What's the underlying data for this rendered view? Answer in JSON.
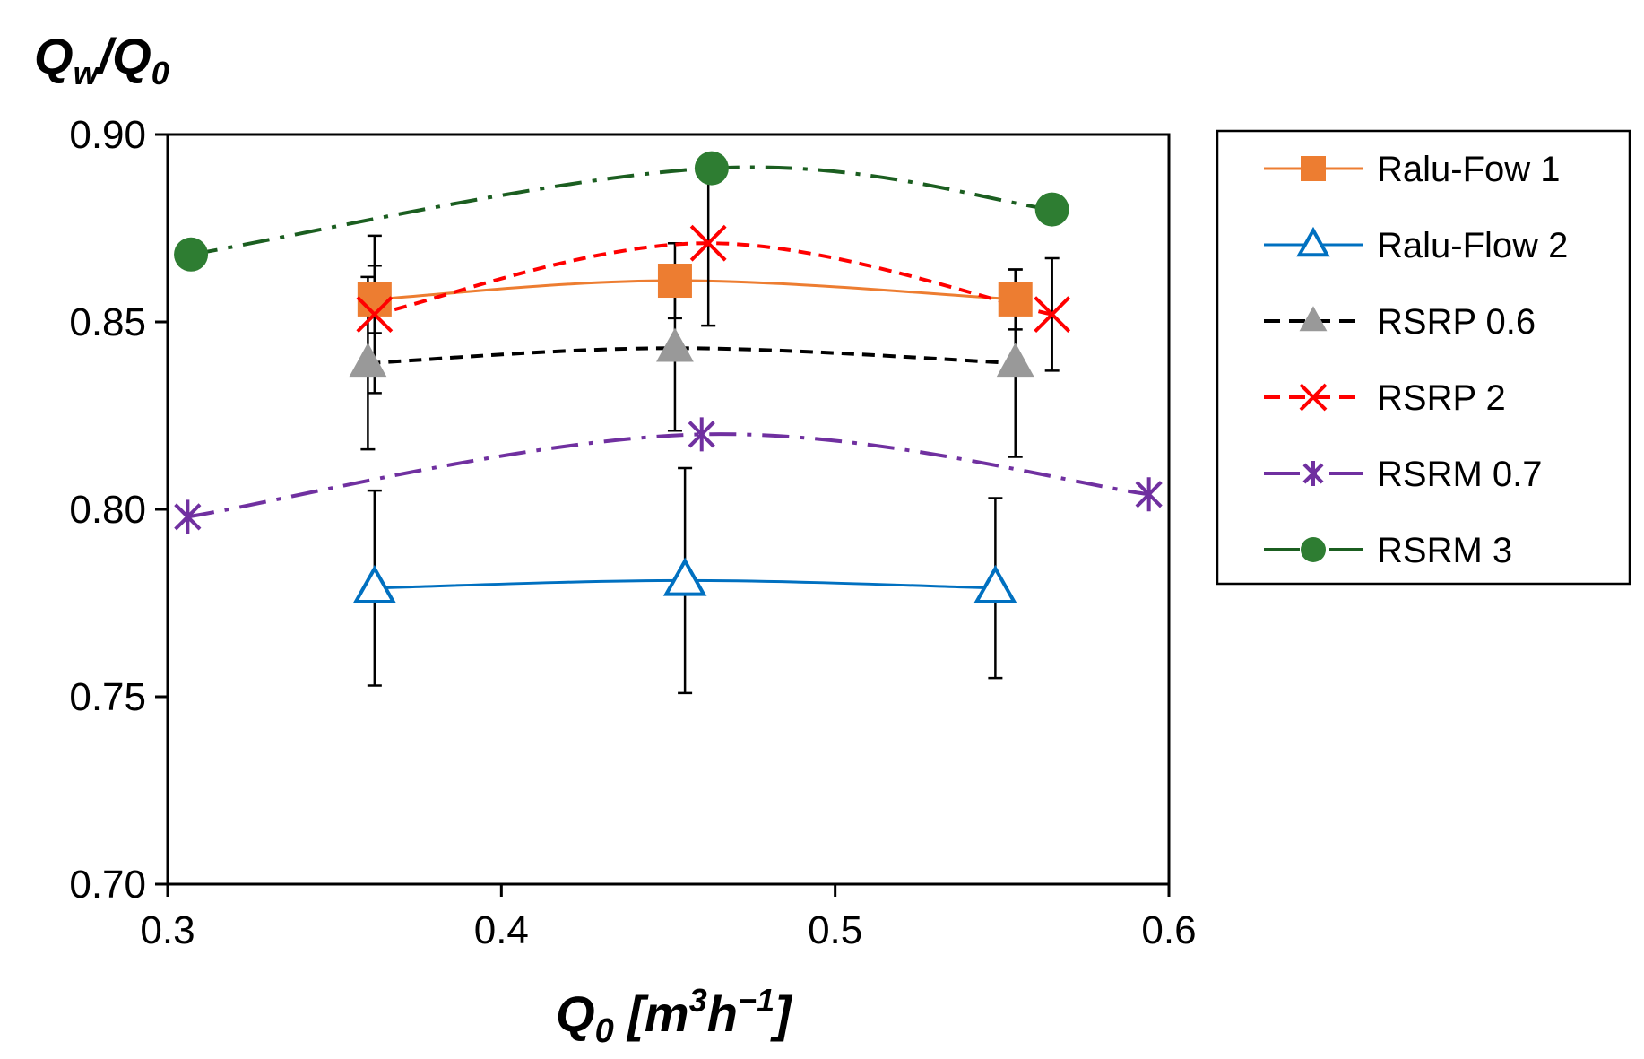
{
  "chart_data": {
    "type": "line",
    "title": "",
    "ylabel": "Q_w/Q_0",
    "ylabel_parts": {
      "q1": "Q",
      "sub1": "w",
      "slash": "/",
      "q2": "Q",
      "sub2": "0"
    },
    "xlabel": "Q_0 [m³h⁻¹]",
    "xlabel_parts": {
      "q": "Q",
      "sub": "0",
      "open": " [m",
      "sup3": "3",
      "mid": "h",
      "supneg": "−1",
      "close": "]"
    },
    "xlim": [
      0.3,
      0.6
    ],
    "ylim": [
      0.7,
      0.9
    ],
    "xticks": [
      0.3,
      0.4,
      0.5,
      0.6
    ],
    "xtick_labels": [
      "0.3",
      "0.4",
      "0.5",
      "0.6"
    ],
    "yticks": [
      0.7,
      0.75,
      0.8,
      0.85,
      0.9
    ],
    "ytick_labels": [
      "0.70",
      "0.75",
      "0.80",
      "0.85",
      "0.90"
    ],
    "grid": false,
    "legend_position": "right",
    "series": [
      {
        "name": "Ralu-Fow 1",
        "color": "#ED7D31",
        "marker": "square",
        "line": "solid",
        "x": [
          0.362,
          0.452,
          0.554
        ],
        "y": [
          0.856,
          0.861,
          0.856
        ],
        "yerr": [
          0.009,
          0.01,
          0.008
        ]
      },
      {
        "name": "Ralu-Flow 2",
        "color": "#0070C0",
        "marker": "triangle-open",
        "line": "solid",
        "x": [
          0.362,
          0.455,
          0.548
        ],
        "y": [
          0.779,
          0.781,
          0.779
        ],
        "yerr": [
          0.026,
          0.03,
          0.024
        ]
      },
      {
        "name": "RSRP 0.6",
        "color": "#999999",
        "line_color": "#000000",
        "marker": "triangle",
        "line": "dashed",
        "x": [
          0.36,
          0.452,
          0.554
        ],
        "y": [
          0.839,
          0.843,
          0.839
        ],
        "yerr": [
          0.023,
          0.022,
          0.025
        ]
      },
      {
        "name": "RSRP 2",
        "color": "#FF0000",
        "marker": "x",
        "line": "dashed",
        "x": [
          0.362,
          0.462,
          0.565
        ],
        "y": [
          0.852,
          0.871,
          0.852
        ],
        "yerr": [
          0.021,
          0.022,
          0.015
        ]
      },
      {
        "name": "RSRM 0.7",
        "color": "#7030A0",
        "marker": "asterisk",
        "line": "dashdot",
        "x": [
          0.306,
          0.46,
          0.594
        ],
        "y": [
          0.798,
          0.82,
          0.804
        ],
        "yerr": [
          0,
          0,
          0
        ]
      },
      {
        "name": "RSRM 3",
        "color": "#2E7D32",
        "line_color": "#1B5E20",
        "marker": "circle",
        "line": "dashdot",
        "x": [
          0.307,
          0.463,
          0.565
        ],
        "y": [
          0.868,
          0.891,
          0.88
        ],
        "yerr": [
          0,
          0,
          0
        ]
      }
    ]
  }
}
